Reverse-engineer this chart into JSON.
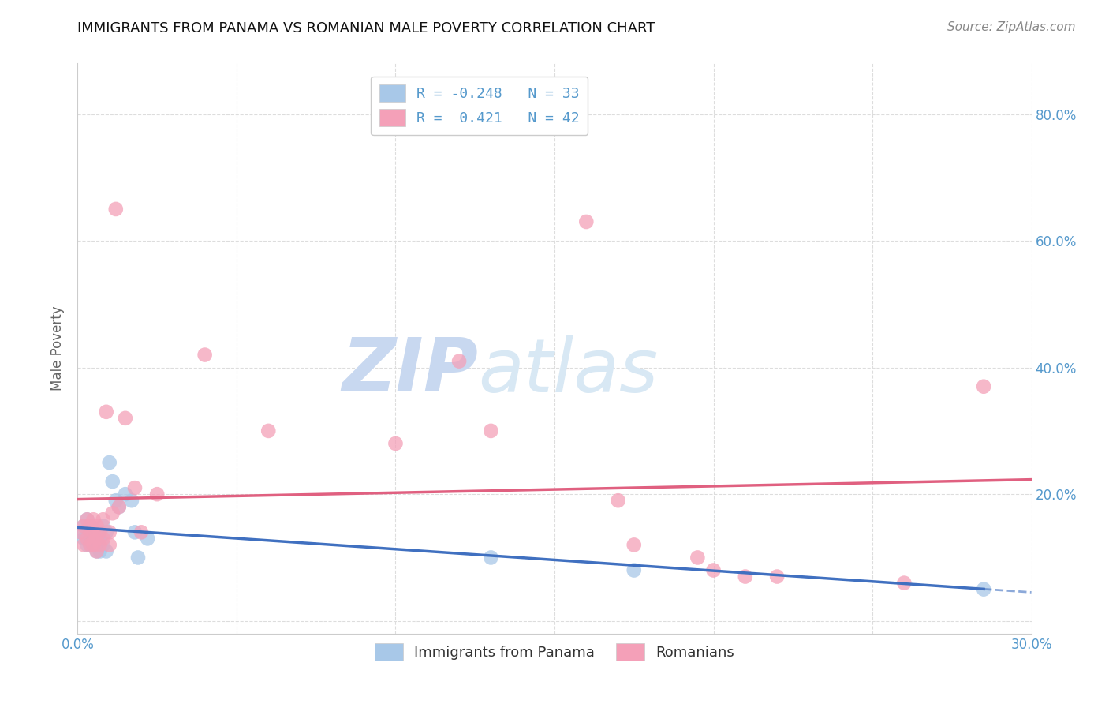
{
  "title": "IMMIGRANTS FROM PANAMA VS ROMANIAN MALE POVERTY CORRELATION CHART",
  "source": "Source: ZipAtlas.com",
  "ylabel": "Male Poverty",
  "xlim": [
    0.0,
    0.3
  ],
  "ylim": [
    -0.02,
    0.88
  ],
  "xticks": [
    0.0,
    0.05,
    0.1,
    0.15,
    0.2,
    0.25,
    0.3
  ],
  "yticks": [
    0.0,
    0.2,
    0.4,
    0.6,
    0.8
  ],
  "ytick_labels": [
    "",
    "20.0%",
    "40.0%",
    "60.0%",
    "80.0%"
  ],
  "legend_label_1": "R = -0.248   N = 33",
  "legend_label_2": "R =  0.421   N = 42",
  "panama_x": [
    0.001,
    0.002,
    0.002,
    0.003,
    0.003,
    0.003,
    0.004,
    0.004,
    0.004,
    0.005,
    0.005,
    0.005,
    0.006,
    0.006,
    0.006,
    0.007,
    0.007,
    0.008,
    0.008,
    0.009,
    0.009,
    0.01,
    0.011,
    0.012,
    0.013,
    0.015,
    0.017,
    0.018,
    0.019,
    0.022,
    0.13,
    0.175,
    0.285
  ],
  "panama_y": [
    0.14,
    0.15,
    0.13,
    0.16,
    0.13,
    0.12,
    0.15,
    0.13,
    0.12,
    0.14,
    0.13,
    0.12,
    0.14,
    0.12,
    0.11,
    0.13,
    0.11,
    0.15,
    0.12,
    0.14,
    0.11,
    0.25,
    0.22,
    0.19,
    0.18,
    0.2,
    0.19,
    0.14,
    0.1,
    0.13,
    0.1,
    0.08,
    0.05
  ],
  "romanian_x": [
    0.001,
    0.002,
    0.002,
    0.003,
    0.003,
    0.004,
    0.004,
    0.004,
    0.005,
    0.005,
    0.005,
    0.006,
    0.006,
    0.006,
    0.007,
    0.007,
    0.008,
    0.008,
    0.009,
    0.01,
    0.01,
    0.011,
    0.012,
    0.013,
    0.015,
    0.018,
    0.02,
    0.025,
    0.04,
    0.06,
    0.1,
    0.12,
    0.13,
    0.16,
    0.17,
    0.175,
    0.195,
    0.2,
    0.21,
    0.22,
    0.26,
    0.285
  ],
  "romanian_y": [
    0.14,
    0.15,
    0.12,
    0.16,
    0.13,
    0.15,
    0.14,
    0.12,
    0.16,
    0.14,
    0.12,
    0.15,
    0.13,
    0.11,
    0.14,
    0.12,
    0.16,
    0.13,
    0.33,
    0.12,
    0.14,
    0.17,
    0.65,
    0.18,
    0.32,
    0.21,
    0.14,
    0.2,
    0.42,
    0.3,
    0.28,
    0.41,
    0.3,
    0.63,
    0.19,
    0.12,
    0.1,
    0.08,
    0.07,
    0.07,
    0.06,
    0.37
  ],
  "panama_color": "#a8c8e8",
  "romanian_color": "#f4a0b8",
  "panama_line_color": "#4070c0",
  "romanian_line_color": "#e06080",
  "background_color": "#ffffff",
  "grid_color": "#dddddd",
  "watermark_zip_color": "#c8d8f0",
  "watermark_atlas_color": "#d8e8f4",
  "tick_color": "#5599cc"
}
